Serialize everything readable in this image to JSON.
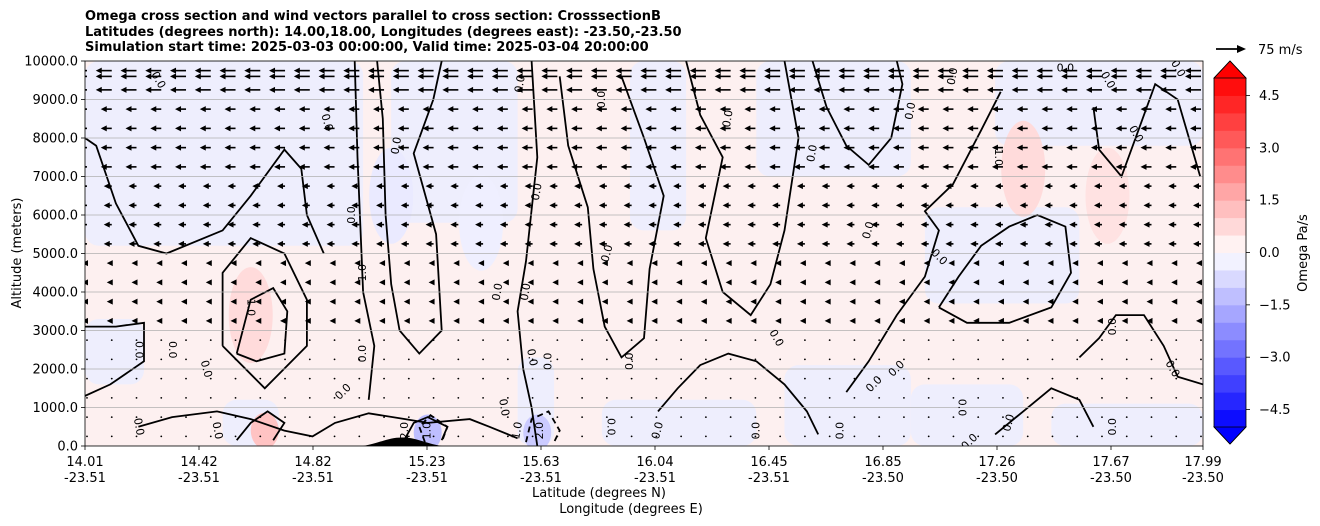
{
  "chart_data": {
    "type": "heatmap",
    "title_lines": [
      "Omega cross section and wind vectors parallel to cross section: CrosssectionB",
      "Latitudes (degrees north): 14.00,18.00, Longitudes (degrees east): -23.50,-23.50",
      "Simulation start time: 2025-03-03 00:00:00, Valid time: 2025-03-04 20:00:00"
    ],
    "ylabel": "Altitude (meters)",
    "xlabel_lat": "Latitude (degrees N)",
    "xlabel_lon": "Longitude (degrees E)",
    "ylim": [
      0,
      10000
    ],
    "xlim": [
      14.01,
      17.99
    ],
    "y_ticks": [
      0,
      1000,
      2000,
      3000,
      4000,
      5000,
      6000,
      7000,
      8000,
      9000,
      10000
    ],
    "y_tick_labels": [
      "0.0",
      "1000.0",
      "2000.0",
      "3000.0",
      "4000.0",
      "5000.0",
      "6000.0",
      "7000.0",
      "8000.0",
      "9000.0",
      "10000.0"
    ],
    "x_ticks": [
      {
        "lat": "14.01",
        "lon": "-23.51"
      },
      {
        "lat": "14.42",
        "lon": "-23.51"
      },
      {
        "lat": "14.82",
        "lon": "-23.51"
      },
      {
        "lat": "15.23",
        "lon": "-23.51"
      },
      {
        "lat": "15.63",
        "lon": "-23.51"
      },
      {
        "lat": "16.04",
        "lon": "-23.51"
      },
      {
        "lat": "16.45",
        "lon": "-23.51"
      },
      {
        "lat": "16.85",
        "lon": "-23.50"
      },
      {
        "lat": "17.26",
        "lon": "-23.50"
      },
      {
        "lat": "17.67",
        "lon": "-23.50"
      },
      {
        "lat": "17.99",
        "lon": "-23.50"
      }
    ],
    "grid": "horizontal",
    "colorbar": {
      "label": "Omega Pa/s",
      "range": [
        -5,
        5
      ],
      "ticks": [
        4.5,
        3.0,
        1.5,
        0.0,
        -1.5,
        -3.0,
        -4.5
      ],
      "tick_labels": [
        "4.5",
        "3.0",
        "1.5",
        "0.0",
        "−1.5",
        "−3.0",
        "−4.5"
      ],
      "colormap": "bwr",
      "extend": "both"
    },
    "quiver_key": {
      "label": "75 m/s"
    },
    "wind_direction": "toward decreasing latitude (southward)",
    "contour_labels": [
      "0.0",
      "1.0",
      "2.0"
    ],
    "features": [
      {
        "kind": "positive",
        "lat": 14.6,
        "alt": 3400,
        "value": 1.5
      },
      {
        "kind": "positive",
        "lat": 14.65,
        "alt": 400,
        "value": 2.5
      },
      {
        "kind": "negative",
        "lat": 15.23,
        "alt": 350,
        "value": -2.5
      },
      {
        "kind": "negative",
        "lat": 15.62,
        "alt": 350,
        "value": -2.0
      },
      {
        "kind": "positive",
        "lat": 17.35,
        "alt": 7200,
        "value": 1.5
      },
      {
        "kind": "positive",
        "lat": 17.65,
        "alt": 6500,
        "value": 1.2
      },
      {
        "kind": "negative",
        "lat": 15.1,
        "alt": 6500,
        "value": -0.8
      },
      {
        "kind": "negative",
        "lat": 15.42,
        "alt": 5800,
        "value": -0.6
      }
    ],
    "terrain": {
      "lat_start": 15.0,
      "lat_end": 15.28,
      "peak_alt": 220,
      "color": "#000000"
    },
    "colors": {
      "max": "#ff0000",
      "min": "#0000ff",
      "near_zero_pos": "#fdf0f0",
      "near_zero_neg": "#eeeefd"
    }
  }
}
